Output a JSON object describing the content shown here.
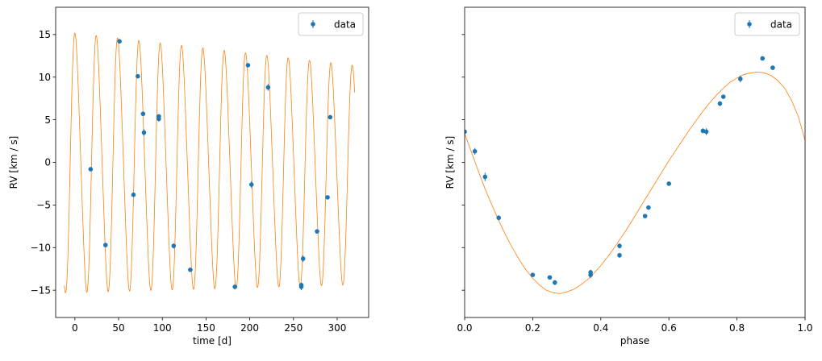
{
  "chart_data": [
    {
      "type": "scatter",
      "xlabel": "time [d]",
      "ylabel": "RV [km / s]",
      "xlim": [
        -22,
        336
      ],
      "ylim": [
        -18.2,
        18.2
      ],
      "xticks": [
        0,
        50,
        100,
        150,
        200,
        250,
        300
      ],
      "xtick_labels": [
        "0",
        "50",
        "100",
        "150",
        "200",
        "250",
        "300"
      ],
      "yticks": [
        -15,
        -10,
        -5,
        0,
        5,
        10,
        15
      ],
      "ytick_labels": [
        "−15",
        "−10",
        "−5",
        "0",
        "5",
        "10",
        "15"
      ],
      "legend": {
        "entries": [
          "data"
        ],
        "position": "upper right"
      },
      "series": [
        {
          "name": "data",
          "kind": "errorbar",
          "color": "#1f77b4",
          "points": [
            {
              "x": 18,
              "y": -0.8,
              "err": 0.2
            },
            {
              "x": 35,
              "y": -9.7,
              "err": 0.2
            },
            {
              "x": 51,
              "y": 14.2,
              "err": 0.2
            },
            {
              "x": 67,
              "y": -3.8,
              "err": 0.2
            },
            {
              "x": 72,
              "y": 10.1,
              "err": 0.2
            },
            {
              "x": 78,
              "y": 5.7,
              "err": 0.2
            },
            {
              "x": 79,
              "y": 3.5,
              "err": 0.4
            },
            {
              "x": 96,
              "y": 5.1,
              "err": 0.3
            },
            {
              "x": 96,
              "y": 5.4,
              "err": 0.2
            },
            {
              "x": 113,
              "y": -9.8,
              "err": 0.3
            },
            {
              "x": 132,
              "y": -12.6,
              "err": 0.2
            },
            {
              "x": 183,
              "y": -14.6,
              "err": 0.3
            },
            {
              "x": 198,
              "y": 11.4,
              "err": 0.2
            },
            {
              "x": 202,
              "y": -2.6,
              "err": 0.4
            },
            {
              "x": 221,
              "y": 8.8,
              "err": 0.4
            },
            {
              "x": 259,
              "y": -14.6,
              "err": 0.4
            },
            {
              "x": 259,
              "y": -14.4,
              "err": 0.3
            },
            {
              "x": 261,
              "y": -11.3,
              "err": 0.4
            },
            {
              "x": 277,
              "y": -8.1,
              "err": 0.2
            },
            {
              "x": 289,
              "y": -4.1,
              "err": 0.2
            },
            {
              "x": 292,
              "y": 5.3,
              "err": 0.2
            }
          ]
        },
        {
          "kind": "model",
          "color": "#ff7f0e",
          "t_range": [
            -12,
            320
          ],
          "period": 24.4,
          "phase0": 0.22,
          "offset": 0.0,
          "amp_start": 15.0,
          "amp_end": 12.6,
          "ecc_shape": 0.35
        }
      ]
    },
    {
      "type": "scatter",
      "xlabel": "phase",
      "ylabel": "RV [km / s]",
      "xlim": [
        0.0,
        1.0
      ],
      "ylim": [
        -18.2,
        18.2
      ],
      "xticks": [
        0.0,
        0.2,
        0.4,
        0.6,
        0.8,
        1.0
      ],
      "xtick_labels": [
        "0.0",
        "0.2",
        "0.4",
        "0.6",
        "0.8",
        "1.0"
      ],
      "yticks": [
        -15,
        -10,
        -5,
        0,
        5,
        10,
        15
      ],
      "legend": {
        "entries": [
          "data"
        ],
        "position": "upper right"
      },
      "series": [
        {
          "name": "data",
          "kind": "errorbar",
          "color": "#1f77b4",
          "points": [
            {
              "x": 0.0,
              "y": 3.6,
              "err": 0.3
            },
            {
              "x": 0.03,
              "y": 1.3,
              "err": 0.4
            },
            {
              "x": 0.06,
              "y": -1.7,
              "err": 0.5
            },
            {
              "x": 0.1,
              "y": -6.5,
              "err": 0.3
            },
            {
              "x": 0.2,
              "y": -13.2,
              "err": 0.2
            },
            {
              "x": 0.25,
              "y": -13.5,
              "err": 0.2
            },
            {
              "x": 0.265,
              "y": -14.1,
              "err": 0.3
            },
            {
              "x": 0.37,
              "y": -13.2,
              "err": 0.4
            },
            {
              "x": 0.37,
              "y": -12.9,
              "err": 0.3
            },
            {
              "x": 0.455,
              "y": -9.8,
              "err": 0.3
            },
            {
              "x": 0.455,
              "y": -10.9,
              "err": 0.3
            },
            {
              "x": 0.53,
              "y": -6.3,
              "err": 0.2
            },
            {
              "x": 0.54,
              "y": -5.3,
              "err": 0.2
            },
            {
              "x": 0.6,
              "y": -2.5,
              "err": 0.2
            },
            {
              "x": 0.7,
              "y": 3.7,
              "err": 0.3
            },
            {
              "x": 0.71,
              "y": 3.6,
              "err": 0.4
            },
            {
              "x": 0.75,
              "y": 6.9,
              "err": 0.3
            },
            {
              "x": 0.76,
              "y": 7.7,
              "err": 0.2
            },
            {
              "x": 0.81,
              "y": 9.8,
              "err": 0.4
            },
            {
              "x": 0.875,
              "y": 12.2,
              "err": 0.2
            },
            {
              "x": 0.905,
              "y": 11.1,
              "err": 0.2
            }
          ]
        },
        {
          "kind": "model",
          "color": "#ff7f0e",
          "curve": [
            [
              0.0,
              3.4
            ],
            [
              0.02,
              1.2
            ],
            [
              0.04,
              -1.0
            ],
            [
              0.06,
              -3.1
            ],
            [
              0.08,
              -5.0
            ],
            [
              0.1,
              -6.8
            ],
            [
              0.12,
              -8.5
            ],
            [
              0.14,
              -10.0
            ],
            [
              0.16,
              -11.4
            ],
            [
              0.18,
              -12.6
            ],
            [
              0.2,
              -13.6
            ],
            [
              0.22,
              -14.4
            ],
            [
              0.24,
              -15.0
            ],
            [
              0.26,
              -15.3
            ],
            [
              0.28,
              -15.4
            ],
            [
              0.3,
              -15.2
            ],
            [
              0.32,
              -14.9
            ],
            [
              0.34,
              -14.4
            ],
            [
              0.36,
              -13.8
            ],
            [
              0.38,
              -13.0
            ],
            [
              0.4,
              -12.1
            ],
            [
              0.42,
              -11.1
            ],
            [
              0.44,
              -10.0
            ],
            [
              0.46,
              -8.8
            ],
            [
              0.48,
              -7.6
            ],
            [
              0.5,
              -6.3
            ],
            [
              0.52,
              -5.0
            ],
            [
              0.54,
              -3.7
            ],
            [
              0.56,
              -2.4
            ],
            [
              0.58,
              -1.1
            ],
            [
              0.6,
              0.2
            ],
            [
              0.62,
              1.4
            ],
            [
              0.64,
              2.6
            ],
            [
              0.66,
              3.8
            ],
            [
              0.68,
              4.9
            ],
            [
              0.7,
              6.0
            ],
            [
              0.72,
              7.0
            ],
            [
              0.74,
              7.9
            ],
            [
              0.76,
              8.7
            ],
            [
              0.78,
              9.4
            ],
            [
              0.8,
              9.9
            ],
            [
              0.82,
              10.3
            ],
            [
              0.84,
              10.5
            ],
            [
              0.86,
              10.6
            ],
            [
              0.88,
              10.5
            ],
            [
              0.9,
              10.2
            ],
            [
              0.92,
              9.6
            ],
            [
              0.94,
              8.7
            ],
            [
              0.96,
              7.3
            ],
            [
              0.98,
              5.4
            ],
            [
              1.0,
              2.6
            ]
          ]
        }
      ]
    }
  ]
}
